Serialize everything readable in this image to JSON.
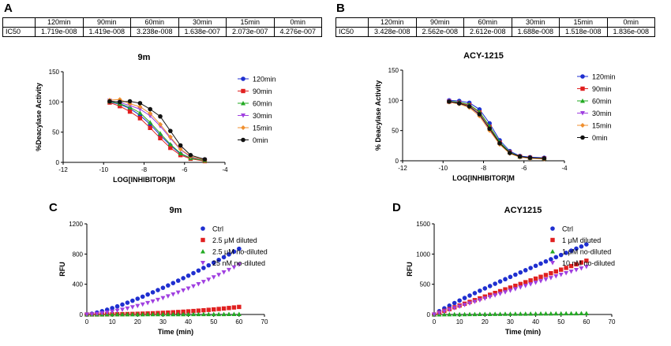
{
  "panels": {
    "A": {
      "letter": "A",
      "table": {
        "headers": [
          "",
          "120min",
          "90min",
          "60min",
          "30min",
          "15min",
          "0min"
        ],
        "row_label": "IC50",
        "values": [
          "1.719e-008",
          "1.419e-008",
          "3.238e-008",
          "1.638e-007",
          "2.073e-007",
          "4.276e-007"
        ]
      }
    },
    "B": {
      "letter": "B",
      "table": {
        "headers": [
          "",
          "120min",
          "90min",
          "60min",
          "30min",
          "15min",
          "0min"
        ],
        "row_label": "IC50",
        "values": [
          "3.428e-008",
          "2.562e-008",
          "2.612e-008",
          "1.688e-008",
          "1.518e-008",
          "1.836e-008"
        ]
      }
    },
    "C": {
      "letter": "C"
    },
    "D": {
      "letter": "D"
    }
  },
  "chart_data": [
    {
      "id": "A",
      "type": "scatter",
      "title": "9m",
      "xlabel": "LOG[INHIBITOR]M",
      "ylabel": "%Deacylase Activity",
      "xlim": [
        -12,
        -4
      ],
      "ylim": [
        0,
        150
      ],
      "xticks": [
        -12,
        -10,
        -8,
        -6,
        -4
      ],
      "yticks": [
        0,
        50,
        100,
        150
      ],
      "x": [
        -9.7,
        -9.2,
        -8.7,
        -8.2,
        -7.7,
        -7.2,
        -6.7,
        -6.2,
        -5.7,
        -5.0
      ],
      "series": [
        {
          "name": "120min",
          "color": "#1f2fd0",
          "marker": "circle",
          "values": [
            100,
            96,
            89,
            78,
            63,
            45,
            28,
            14,
            7,
            3
          ]
        },
        {
          "name": "90min",
          "color": "#e02020",
          "marker": "square",
          "values": [
            99,
            93,
            84,
            73,
            57,
            40,
            24,
            12,
            6,
            2
          ]
        },
        {
          "name": "60min",
          "color": "#22aa22",
          "marker": "triangle-up",
          "values": [
            101,
            97,
            91,
            82,
            66,
            48,
            30,
            15,
            7,
            3
          ]
        },
        {
          "name": "30min",
          "color": "#a040e0",
          "marker": "triangle-down",
          "values": [
            102,
            99,
            94,
            88,
            77,
            60,
            40,
            21,
            9,
            4
          ]
        },
        {
          "name": "15min",
          "color": "#f09030",
          "marker": "diamond",
          "values": [
            103,
            104,
            97,
            92,
            81,
            63,
            42,
            22,
            10,
            4
          ]
        },
        {
          "name": "0min",
          "color": "#111111",
          "marker": "circle",
          "values": [
            101,
            100,
            101,
            98,
            88,
            76,
            52,
            28,
            12,
            5
          ]
        }
      ]
    },
    {
      "id": "B",
      "type": "scatter",
      "title": "ACY-1215",
      "xlabel": "LOG[INHIBITOR]M",
      "ylabel": "% Deacylase Activity",
      "xlim": [
        -12,
        -4
      ],
      "ylim": [
        0,
        150
      ],
      "xticks": [
        -12,
        -10,
        -8,
        -6,
        -4
      ],
      "yticks": [
        0,
        50,
        100,
        150
      ],
      "x": [
        -9.7,
        -9.2,
        -8.7,
        -8.2,
        -7.7,
        -7.2,
        -6.7,
        -6.2,
        -5.7,
        -5.0
      ],
      "series": [
        {
          "name": "120min",
          "color": "#1f2fd0",
          "marker": "circle",
          "values": [
            100,
            99,
            96,
            85,
            62,
            34,
            16,
            8,
            6,
            5
          ]
        },
        {
          "name": "90min",
          "color": "#e02020",
          "marker": "square",
          "values": [
            98,
            96,
            92,
            80,
            56,
            30,
            14,
            7,
            5,
            4
          ]
        },
        {
          "name": "60min",
          "color": "#22aa22",
          "marker": "triangle-up",
          "values": [
            99,
            97,
            93,
            81,
            57,
            31,
            14,
            7,
            5,
            4
          ]
        },
        {
          "name": "30min",
          "color": "#a040e0",
          "marker": "triangle-down",
          "values": [
            99,
            95,
            90,
            76,
            52,
            28,
            13,
            6,
            4,
            4
          ]
        },
        {
          "name": "15min",
          "color": "#f09030",
          "marker": "diamond",
          "values": [
            97,
            94,
            88,
            74,
            50,
            27,
            12,
            6,
            4,
            3
          ]
        },
        {
          "name": "0min",
          "color": "#111111",
          "marker": "circle",
          "values": [
            98,
            95,
            90,
            77,
            53,
            29,
            13,
            7,
            5,
            4
          ]
        }
      ]
    },
    {
      "id": "C",
      "type": "scatter",
      "title": "9m",
      "xlabel": "Time (min)",
      "ylabel": "RFU",
      "xlim": [
        0,
        70
      ],
      "ylim": [
        0,
        1200
      ],
      "xticks": [
        0,
        10,
        20,
        30,
        40,
        50,
        60,
        70
      ],
      "yticks": [
        0,
        400,
        800,
        1200
      ],
      "x_range": [
        0,
        60
      ],
      "x_step": 2,
      "series": [
        {
          "name": "Ctrl",
          "color": "#1f2fd0",
          "marker": "circle",
          "curve": [
            0,
            870
          ],
          "shape": 1.3
        },
        {
          "name": "2.5 μM diluted",
          "color": "#e02020",
          "marker": "square",
          "curve": [
            0,
            100
          ],
          "shape": 2.2
        },
        {
          "name": "2.5 μM no-diluted",
          "color": "#22aa22",
          "marker": "triangle-up",
          "curve": [
            0,
            5
          ],
          "shape": 1.0
        },
        {
          "name": "25 nM no-diluted",
          "color": "#a040e0",
          "marker": "triangle-down",
          "curve": [
            0,
            660
          ],
          "shape": 1.6
        }
      ]
    },
    {
      "id": "D",
      "type": "scatter",
      "title": "ACY1215",
      "xlabel": "Time (min)",
      "ylabel": "RFU",
      "xlim": [
        0,
        70
      ],
      "ylim": [
        0,
        1500
      ],
      "xticks": [
        0,
        10,
        20,
        30,
        40,
        50,
        60,
        70
      ],
      "yticks": [
        0,
        500,
        1000,
        1500
      ],
      "x_range": [
        0,
        60
      ],
      "x_step": 2,
      "series": [
        {
          "name": "Ctrl",
          "color": "#1f2fd0",
          "marker": "circle",
          "curve": [
            0,
            1160
          ],
          "shape": 0.9
        },
        {
          "name": "1 μM diluted",
          "color": "#e02020",
          "marker": "square",
          "curve": [
            0,
            890
          ],
          "shape": 1.0
        },
        {
          "name": "1 μM no-diluted",
          "color": "#22aa22",
          "marker": "triangle-up",
          "curve": [
            0,
            20
          ],
          "shape": 1.0
        },
        {
          "name": "10 nM no-diluted",
          "color": "#a040e0",
          "marker": "triangle-down",
          "curve": [
            0,
            790
          ],
          "shape": 1.0
        }
      ]
    }
  ]
}
